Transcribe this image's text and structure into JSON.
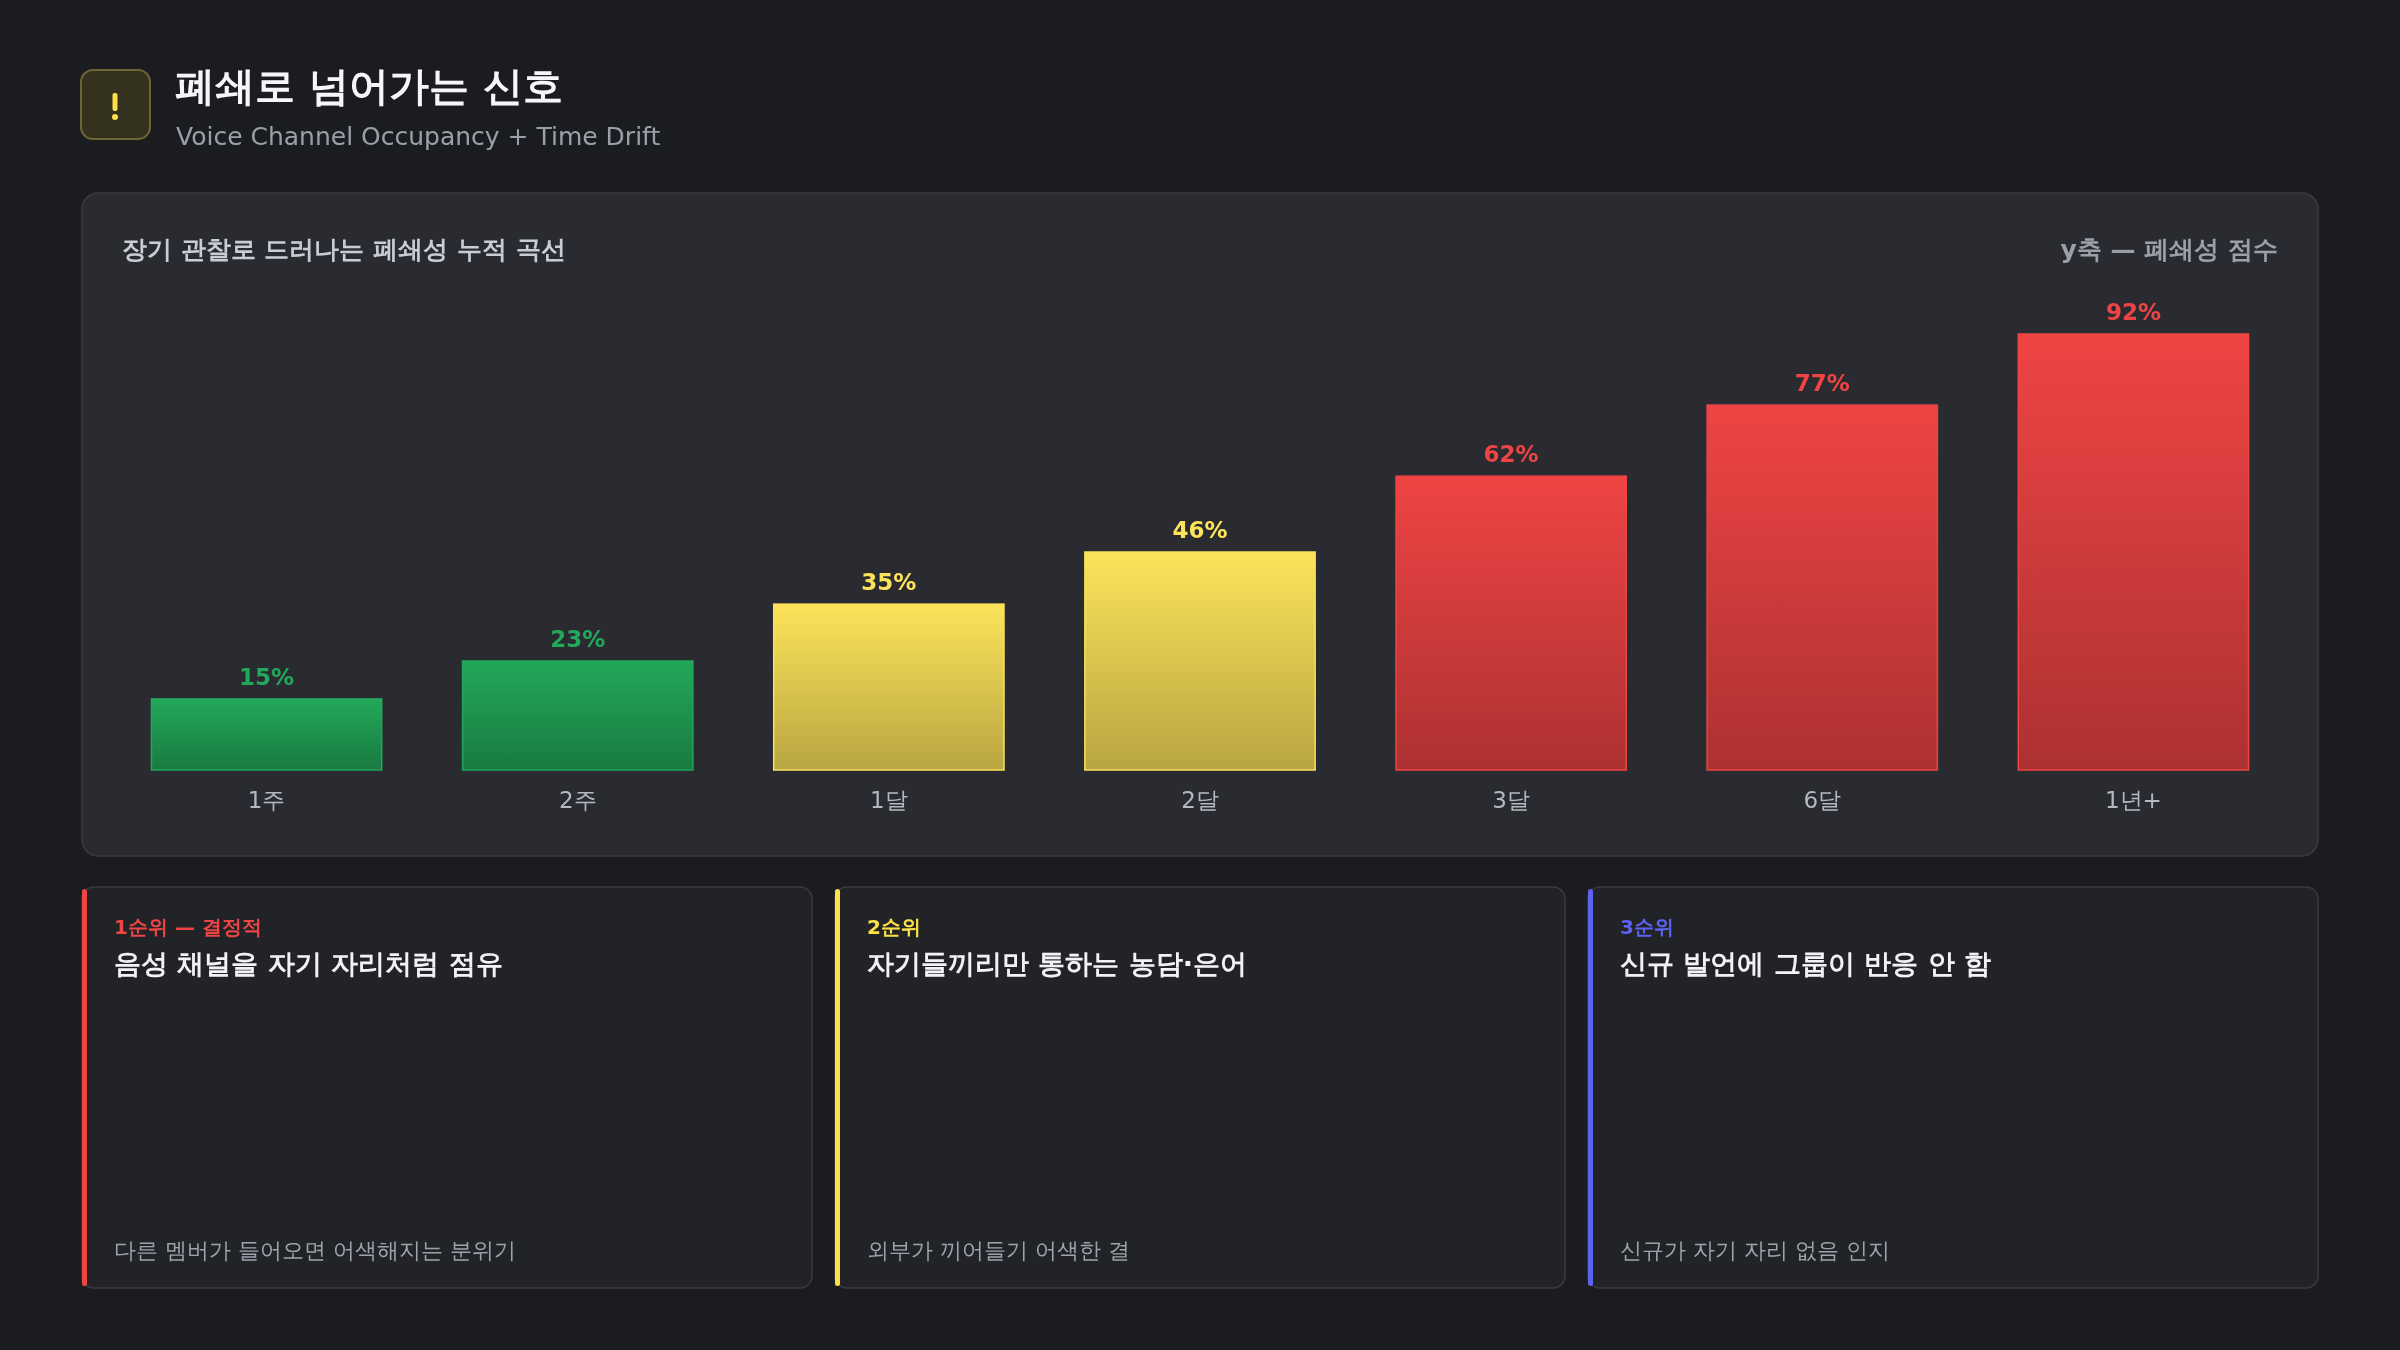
{
  "chart_data": [
    {
      "type": "bar",
      "title": "폐쇄로 넘어가는 신호",
      "subtitle": "Voice Channel Occupancy + Time Drift",
      "annotations": [
        "장기 관찰로 드러나는 폐쇄성 누적 곡선"
      ],
      "ylabel": "y축 — 폐쇄성 점수",
      "categories": [
        "1주",
        "2주",
        "1달",
        "2달",
        "3달",
        "6달",
        "1년+"
      ],
      "values": [
        15,
        23,
        35,
        46,
        62,
        77,
        92
      ],
      "value_labels": [
        "15%",
        "23%",
        "35%",
        "46%",
        "62%",
        "77%",
        "92%"
      ],
      "colors": [
        "#22a85a",
        "#22a85a",
        "#fde35a",
        "#fde35a",
        "#ef4444",
        "#ef4444",
        "#ef4444"
      ],
      "tick_labels": "x"
    },
    {
      "type": "other",
      "subtitle": "1순위 — 결정적",
      "title": "음성 채널을 자기 자리처럼 점유",
      "annotations": [
        "다른 멤버가 들어오면 어색해지는 분위기"
      ],
      "color": "#ef4444"
    },
    {
      "type": "other",
      "subtitle": "2순위",
      "title": "자기들끼리만 통하는 농담·은어",
      "annotations": [
        "외부가 끼어들기 어색한 결"
      ],
      "color": "#fde047"
    },
    {
      "type": "other",
      "subtitle": "3순위",
      "title": "신규 발언에 그룹이 반응 안 함",
      "annotations": [
        "신규가 자기 자리 없음 인지"
      ],
      "color": "#5b63f0"
    }
  ]
}
